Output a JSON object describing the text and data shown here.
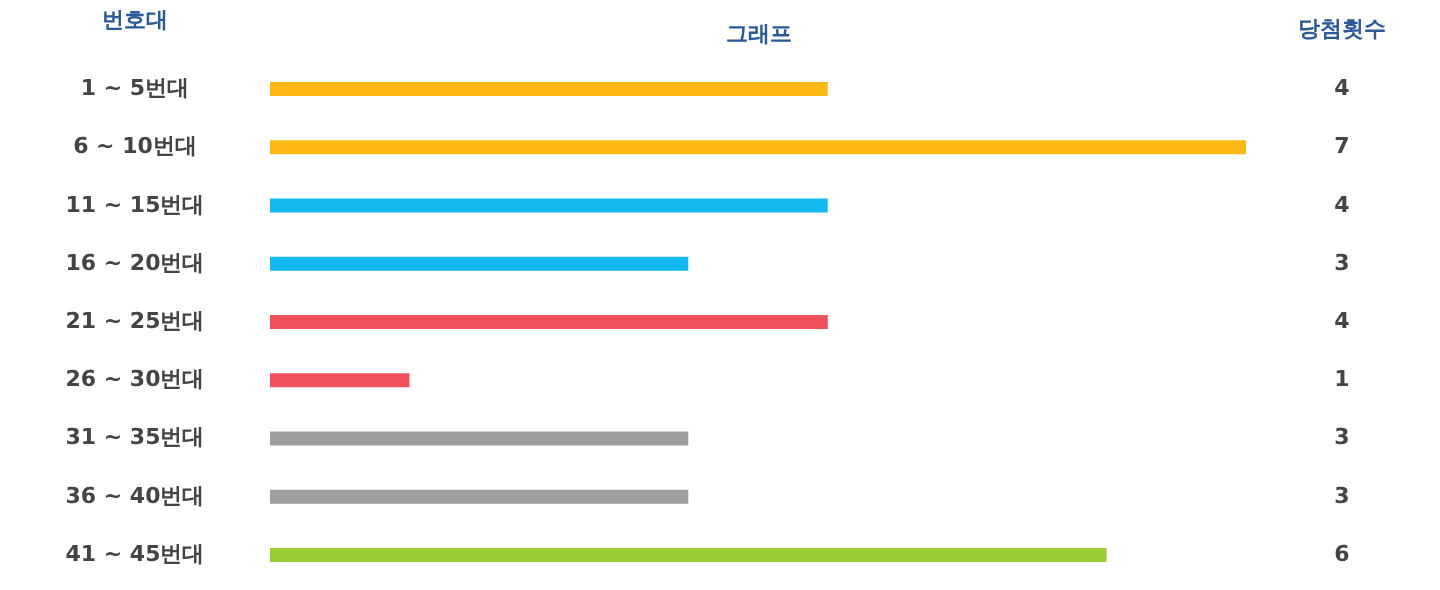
{
  "chart_data": {
    "type": "bar",
    "orientation": "horizontal",
    "xlabel": "그래프",
    "ylabel": "번호대",
    "annotations": [
      "당첨횟수"
    ],
    "categories": [
      "1 ~ 5번대",
      "6 ~ 10번대",
      "11 ~ 15번대",
      "16 ~ 20번대",
      "21 ~ 25번대",
      "26 ~ 30번대",
      "31 ~ 35번대",
      "36 ~ 40번대",
      "41 ~ 45번대"
    ],
    "values": [
      4,
      7,
      4,
      3,
      4,
      1,
      3,
      3,
      6
    ],
    "colors": [
      "#fdb813",
      "#fdb813",
      "#12b8f0",
      "#12b8f0",
      "#ef5059",
      "#ef5059",
      "#9e9e9e",
      "#9e9e9e",
      "#9acd32"
    ],
    "xlim": [
      0,
      7
    ],
    "data_labels": true,
    "tick_labels": "y",
    "grid": false
  }
}
